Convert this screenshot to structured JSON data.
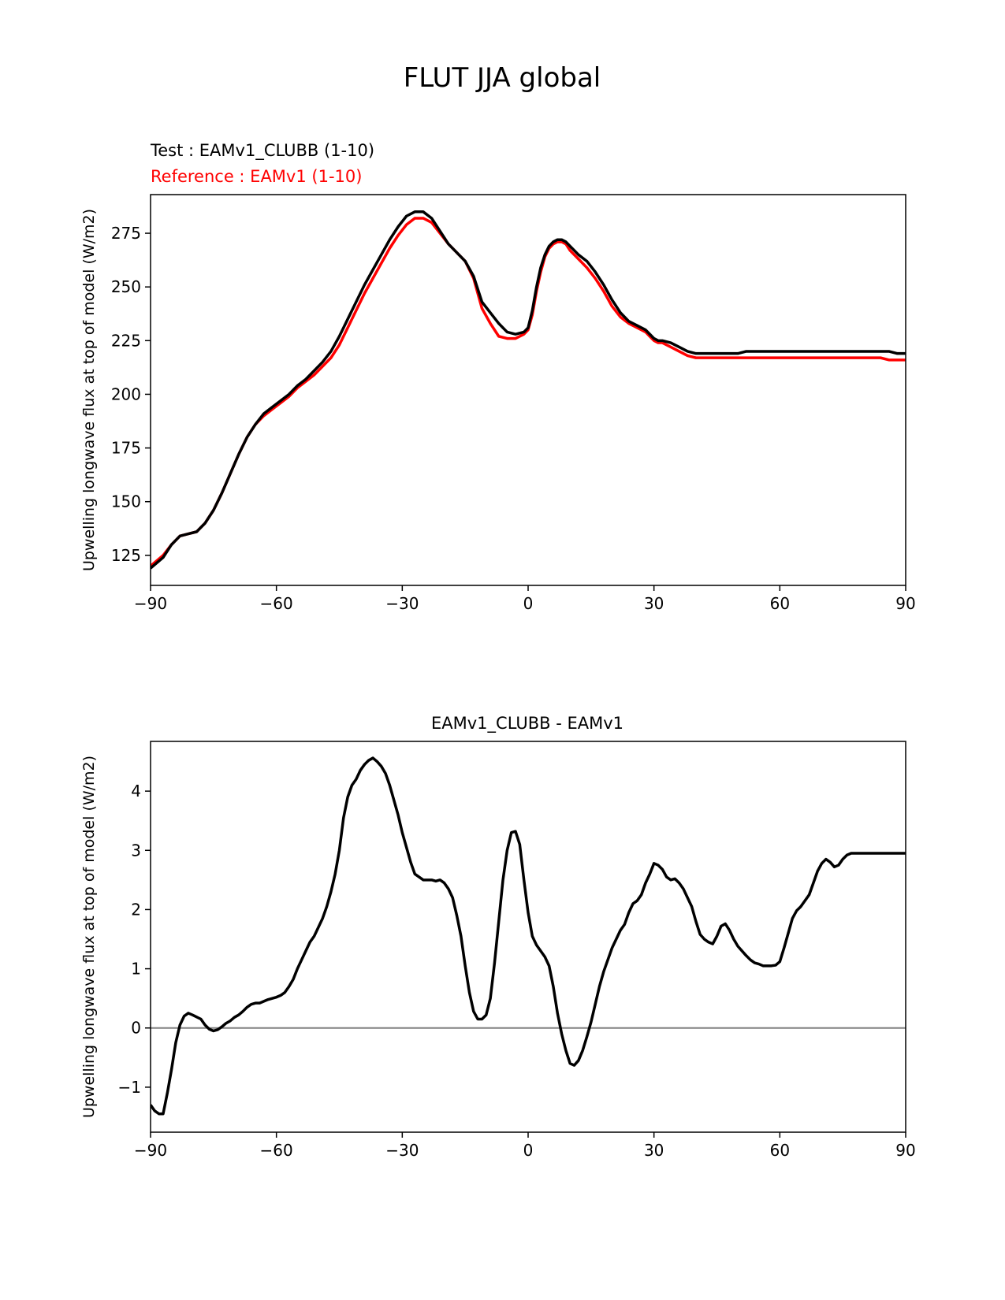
{
  "figure": {
    "title": "FLUT JJA global"
  },
  "colors": {
    "test": "#000000",
    "reference": "#ff0000",
    "zero_line": "#808080"
  },
  "chart_data": [
    {
      "type": "line",
      "title": "",
      "legend": [
        {
          "label": "Test : EAMv1_CLUBB (1-10)",
          "color": "#000000"
        },
        {
          "label": "Reference : EAMv1 (1-10)",
          "color": "#ff0000"
        }
      ],
      "xlabel": "",
      "ylabel": "Upwelling longwave flux at top of model (W/m2)",
      "xlim": [
        -90,
        90
      ],
      "ylim": [
        111,
        293
      ],
      "xticks": [
        -90,
        -60,
        -30,
        0,
        30,
        60,
        90
      ],
      "xtick_labels": [
        "−90",
        "−60",
        "−30",
        "0",
        "30",
        "60",
        "90"
      ],
      "yticks": [
        125,
        150,
        175,
        200,
        225,
        250,
        275
      ],
      "ytick_labels": [
        "125",
        "150",
        "175",
        "200",
        "225",
        "250",
        "275"
      ],
      "x": [
        -90,
        -87,
        -85,
        -83,
        -81,
        -79,
        -77,
        -75,
        -73,
        -71,
        -69,
        -67,
        -65,
        -63,
        -61,
        -59,
        -57,
        -55,
        -53,
        -51,
        -49,
        -47,
        -45,
        -43,
        -41,
        -39,
        -37,
        -35,
        -33,
        -31,
        -29,
        -27,
        -25,
        -23,
        -21,
        -19,
        -17,
        -15,
        -13,
        -11,
        -9,
        -7,
        -5,
        -3,
        -1,
        0,
        1,
        2,
        3,
        4,
        5,
        6,
        7,
        8,
        9,
        10,
        12,
        14,
        16,
        18,
        20,
        22,
        24,
        26,
        28,
        29,
        30,
        31,
        32,
        34,
        36,
        38,
        40,
        42,
        44,
        46,
        48,
        50,
        52,
        54,
        56,
        58,
        60,
        62,
        64,
        66,
        68,
        70,
        72,
        74,
        76,
        78,
        80,
        82,
        84,
        86,
        88,
        90
      ],
      "series": [
        {
          "name": "Test : EAMv1_CLUBB (1-10)",
          "color": "#000000",
          "values": [
            119,
            124,
            130,
            134,
            135,
            136,
            140,
            146,
            154,
            163,
            172,
            180,
            186,
            191,
            194,
            197,
            200,
            204,
            207,
            211,
            215,
            220,
            227,
            235,
            243,
            251,
            258,
            265,
            272,
            278,
            283,
            285,
            285,
            282,
            276,
            270,
            266,
            262,
            255,
            243,
            238,
            233,
            229,
            228,
            229,
            231,
            239,
            250,
            259,
            265,
            269,
            271,
            272,
            272,
            271,
            269,
            265,
            262,
            257,
            251,
            244,
            238,
            234,
            232,
            230,
            228,
            226,
            225,
            225,
            224,
            222,
            220,
            219,
            219,
            219,
            219,
            219,
            219,
            220,
            220,
            220,
            220,
            220,
            220,
            220,
            220,
            220,
            220,
            220,
            220,
            220,
            220,
            220,
            220,
            220,
            220,
            219,
            219
          ]
        },
        {
          "name": "Reference : EAMv1 (1-10)",
          "color": "#ff0000",
          "values": [
            120,
            125,
            130,
            134,
            135,
            136,
            140,
            146,
            154,
            163,
            172,
            180,
            186,
            190,
            193,
            196,
            199,
            203,
            206,
            209,
            213,
            217,
            223,
            231,
            239,
            247,
            254,
            261,
            268,
            274,
            279,
            282,
            282,
            280,
            275,
            270,
            266,
            262,
            254,
            240,
            233,
            227,
            226,
            226,
            228,
            230,
            237,
            248,
            257,
            264,
            268,
            270,
            271,
            271,
            270,
            267,
            263,
            259,
            254,
            248,
            241,
            236,
            233,
            231,
            229,
            227,
            225,
            224,
            224,
            222,
            220,
            218,
            217,
            217,
            217,
            217,
            217,
            217,
            217,
            217,
            217,
            217,
            217,
            217,
            217,
            217,
            217,
            217,
            217,
            217,
            217,
            217,
            217,
            217,
            217,
            216,
            216,
            216
          ]
        }
      ]
    },
    {
      "type": "line",
      "title": "EAMv1_CLUBB - EAMv1",
      "xlabel": "",
      "ylabel": "Upwelling longwave flux at top of model (W/m2)",
      "xlim": [
        -90,
        90
      ],
      "ylim": [
        -1.76,
        4.84
      ],
      "xticks": [
        -90,
        -60,
        -30,
        0,
        30,
        60,
        90
      ],
      "xtick_labels": [
        "−90",
        "−60",
        "−30",
        "0",
        "30",
        "60",
        "90"
      ],
      "yticks": [
        -1,
        0,
        1,
        2,
        3,
        4
      ],
      "ytick_labels": [
        "−1",
        "0",
        "1",
        "2",
        "3",
        "4"
      ],
      "zero_line": 0,
      "x": [
        -90,
        -89,
        -88,
        -87,
        -86,
        -85,
        -84,
        -83,
        -82,
        -81,
        -80,
        -78,
        -77,
        -76,
        -75,
        -74,
        -73,
        -72,
        -71,
        -70,
        -69,
        -68,
        -67,
        -66,
        -65,
        -64,
        -63,
        -62,
        -61,
        -60,
        -59,
        -58,
        -57,
        -56,
        -55,
        -54,
        -53,
        -52,
        -51,
        -50,
        -49,
        -48,
        -47,
        -46,
        -45,
        -44,
        -43,
        -42,
        -41,
        -40,
        -39,
        -38,
        -37,
        -36,
        -35,
        -34,
        -33,
        -32,
        -31,
        -30,
        -29,
        -28,
        -27,
        -26,
        -25,
        -24,
        -23,
        -22,
        -21,
        -20,
        -19,
        -18,
        -17,
        -16,
        -15,
        -14,
        -13,
        -12,
        -11,
        -10,
        -9,
        -8,
        -7,
        -6,
        -5,
        -4,
        -3,
        -2,
        -1,
        0,
        1,
        2,
        3,
        4,
        5,
        6,
        7,
        8,
        9,
        10,
        11,
        12,
        13,
        14,
        15,
        16,
        17,
        18,
        19,
        20,
        21,
        22,
        23,
        24,
        25,
        26,
        27,
        28,
        29,
        30,
        31,
        32,
        33,
        34,
        35,
        36,
        37,
        38,
        39,
        40,
        41,
        42,
        43,
        44,
        45,
        46,
        47,
        48,
        49,
        50,
        51,
        52,
        53,
        54,
        55,
        56,
        57,
        58,
        59,
        60,
        61,
        62,
        63,
        64,
        65,
        66,
        67,
        68,
        69,
        70,
        71,
        72,
        73,
        74,
        75,
        76,
        77,
        78,
        79,
        80,
        81,
        82,
        83,
        84,
        85,
        86,
        87,
        88,
        89,
        90
      ],
      "series": [
        {
          "name": "EAMv1_CLUBB - EAMv1",
          "color": "#000000",
          "values": [
            -1.3,
            -1.4,
            -1.45,
            -1.45,
            -1.1,
            -0.7,
            -0.25,
            0.05,
            0.2,
            0.25,
            0.22,
            0.15,
            0.05,
            -0.02,
            -0.05,
            -0.03,
            0.02,
            0.08,
            0.12,
            0.18,
            0.22,
            0.28,
            0.35,
            0.4,
            0.42,
            0.42,
            0.45,
            0.48,
            0.5,
            0.52,
            0.55,
            0.6,
            0.7,
            0.82,
            1.0,
            1.15,
            1.3,
            1.45,
            1.55,
            1.7,
            1.85,
            2.05,
            2.3,
            2.6,
            3.0,
            3.55,
            3.9,
            4.1,
            4.2,
            4.35,
            4.45,
            4.52,
            4.56,
            4.5,
            4.42,
            4.3,
            4.1,
            3.85,
            3.6,
            3.3,
            3.05,
            2.8,
            2.6,
            2.55,
            2.5,
            2.5,
            2.5,
            2.48,
            2.5,
            2.45,
            2.35,
            2.2,
            1.9,
            1.55,
            1.05,
            0.6,
            0.28,
            0.15,
            0.15,
            0.22,
            0.5,
            1.1,
            1.8,
            2.5,
            3.0,
            3.3,
            3.32,
            3.1,
            2.5,
            1.95,
            1.55,
            1.4,
            1.3,
            1.2,
            1.05,
            0.7,
            0.25,
            -0.1,
            -0.38,
            -0.6,
            -0.63,
            -0.55,
            -0.38,
            -0.15,
            0.1,
            0.4,
            0.7,
            0.95,
            1.15,
            1.35,
            1.5,
            1.65,
            1.75,
            1.95,
            2.1,
            2.15,
            2.25,
            2.45,
            2.6,
            2.78,
            2.75,
            2.68,
            2.55,
            2.5,
            2.52,
            2.45,
            2.35,
            2.2,
            2.05,
            1.8,
            1.58,
            1.5,
            1.45,
            1.42,
            1.55,
            1.72,
            1.76,
            1.65,
            1.5,
            1.38,
            1.3,
            1.22,
            1.15,
            1.1,
            1.08,
            1.05,
            1.05,
            1.05,
            1.06,
            1.12,
            1.35,
            1.6,
            1.85,
            1.98,
            2.05,
            2.15,
            2.25,
            2.45,
            2.65,
            2.78,
            2.85,
            2.8,
            2.72,
            2.75,
            2.85,
            2.92,
            2.95,
            2.95,
            2.95,
            2.95,
            2.95,
            2.95,
            2.95,
            2.95,
            2.95,
            2.95,
            2.95,
            2.95,
            2.95,
            2.95
          ]
        }
      ]
    }
  ]
}
